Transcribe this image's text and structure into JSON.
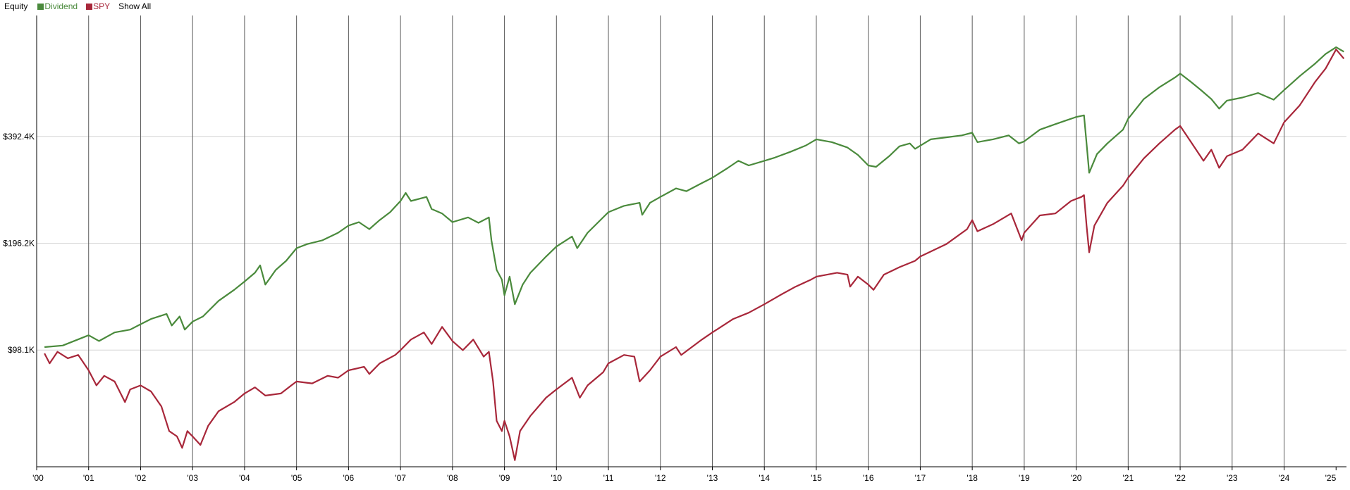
{
  "legend": {
    "title": "Equity",
    "items": [
      {
        "label": "Dividend",
        "color": "#4a8a3c"
      },
      {
        "label": "SPY",
        "color": "#a8273a"
      }
    ],
    "show_all": "Show All"
  },
  "chart_data": {
    "type": "line",
    "title": "Equity",
    "xlabel": "",
    "ylabel": "",
    "grid": true,
    "legend_position": "top-left",
    "x_ticks": [
      "'00",
      "'01",
      "'02",
      "'03",
      "'04",
      "'05",
      "'06",
      "'07",
      "'08",
      "'09",
      "'10",
      "'11",
      "'12",
      "'13",
      "'14",
      "'15",
      "'16",
      "'17",
      "'18",
      "'19",
      "'20",
      "'21",
      "'22",
      "'23",
      "'24",
      "'25"
    ],
    "y_ticks": [
      {
        "value": 98100,
        "label": "$98.1K"
      },
      {
        "value": 196200,
        "label": "$196.2K"
      },
      {
        "value": 392400,
        "label": "$392.4K"
      }
    ],
    "y_scale": "log",
    "xlim": [
      2000.0,
      2025.2
    ],
    "ylim": [
      46000,
      860000
    ],
    "series": [
      {
        "name": "Dividend",
        "color": "#4a8a3c",
        "points": [
          [
            2000.15,
            100000
          ],
          [
            2000.5,
            101000
          ],
          [
            2001.0,
            108000
          ],
          [
            2001.2,
            104000
          ],
          [
            2001.5,
            110000
          ],
          [
            2001.8,
            112000
          ],
          [
            2002.0,
            116000
          ],
          [
            2002.2,
            120000
          ],
          [
            2002.5,
            124000
          ],
          [
            2002.6,
            115000
          ],
          [
            2002.75,
            122000
          ],
          [
            2002.85,
            112000
          ],
          [
            2003.0,
            118000
          ],
          [
            2003.2,
            122000
          ],
          [
            2003.5,
            135000
          ],
          [
            2003.8,
            145000
          ],
          [
            2004.0,
            153000
          ],
          [
            2004.2,
            162000
          ],
          [
            2004.3,
            170000
          ],
          [
            2004.4,
            150000
          ],
          [
            2004.6,
            165000
          ],
          [
            2004.8,
            175000
          ],
          [
            2005.0,
            190000
          ],
          [
            2005.2,
            195000
          ],
          [
            2005.5,
            200000
          ],
          [
            2005.8,
            210000
          ],
          [
            2006.0,
            220000
          ],
          [
            2006.2,
            225000
          ],
          [
            2006.4,
            215000
          ],
          [
            2006.6,
            228000
          ],
          [
            2006.8,
            240000
          ],
          [
            2007.0,
            258000
          ],
          [
            2007.1,
            272000
          ],
          [
            2007.2,
            258000
          ],
          [
            2007.5,
            265000
          ],
          [
            2007.6,
            245000
          ],
          [
            2007.8,
            238000
          ],
          [
            2008.0,
            225000
          ],
          [
            2008.3,
            232000
          ],
          [
            2008.5,
            224000
          ],
          [
            2008.7,
            232000
          ],
          [
            2008.75,
            200000
          ],
          [
            2008.85,
            165000
          ],
          [
            2008.95,
            155000
          ],
          [
            2009.0,
            140000
          ],
          [
            2009.1,
            158000
          ],
          [
            2009.2,
            132000
          ],
          [
            2009.35,
            150000
          ],
          [
            2009.5,
            162000
          ],
          [
            2009.8,
            180000
          ],
          [
            2010.0,
            192000
          ],
          [
            2010.3,
            205000
          ],
          [
            2010.4,
            190000
          ],
          [
            2010.6,
            210000
          ],
          [
            2011.0,
            240000
          ],
          [
            2011.3,
            250000
          ],
          [
            2011.6,
            255000
          ],
          [
            2011.65,
            236000
          ],
          [
            2011.8,
            255000
          ],
          [
            2012.0,
            265000
          ],
          [
            2012.3,
            280000
          ],
          [
            2012.5,
            275000
          ],
          [
            2012.8,
            290000
          ],
          [
            2013.0,
            300000
          ],
          [
            2013.3,
            320000
          ],
          [
            2013.5,
            335000
          ],
          [
            2013.7,
            325000
          ],
          [
            2014.0,
            335000
          ],
          [
            2014.2,
            342000
          ],
          [
            2014.5,
            355000
          ],
          [
            2014.8,
            370000
          ],
          [
            2015.0,
            385000
          ],
          [
            2015.3,
            378000
          ],
          [
            2015.6,
            365000
          ],
          [
            2015.8,
            348000
          ],
          [
            2016.0,
            325000
          ],
          [
            2016.15,
            322000
          ],
          [
            2016.4,
            345000
          ],
          [
            2016.6,
            368000
          ],
          [
            2016.8,
            375000
          ],
          [
            2016.9,
            362000
          ],
          [
            2017.2,
            385000
          ],
          [
            2017.5,
            390000
          ],
          [
            2017.8,
            395000
          ],
          [
            2018.0,
            402000
          ],
          [
            2018.1,
            378000
          ],
          [
            2018.4,
            385000
          ],
          [
            2018.7,
            395000
          ],
          [
            2018.9,
            375000
          ],
          [
            2019.0,
            380000
          ],
          [
            2019.3,
            410000
          ],
          [
            2019.6,
            425000
          ],
          [
            2019.8,
            435000
          ],
          [
            2020.0,
            445000
          ],
          [
            2020.15,
            450000
          ],
          [
            2020.2,
            375000
          ],
          [
            2020.25,
            310000
          ],
          [
            2020.4,
            350000
          ],
          [
            2020.6,
            375000
          ],
          [
            2020.9,
            410000
          ],
          [
            2021.0,
            440000
          ],
          [
            2021.3,
            500000
          ],
          [
            2021.6,
            540000
          ],
          [
            2021.9,
            575000
          ],
          [
            2022.0,
            590000
          ],
          [
            2022.2,
            560000
          ],
          [
            2022.4,
            530000
          ],
          [
            2022.6,
            500000
          ],
          [
            2022.75,
            470000
          ],
          [
            2022.9,
            495000
          ],
          [
            2023.2,
            505000
          ],
          [
            2023.5,
            520000
          ],
          [
            2023.8,
            498000
          ],
          [
            2024.0,
            530000
          ],
          [
            2024.3,
            580000
          ],
          [
            2024.6,
            630000
          ],
          [
            2024.8,
            670000
          ],
          [
            2025.0,
            700000
          ],
          [
            2025.15,
            680000
          ]
        ]
      },
      {
        "name": "SPY",
        "color": "#a8273a",
        "points": [
          [
            2000.15,
            96000
          ],
          [
            2000.25,
            90000
          ],
          [
            2000.4,
            97000
          ],
          [
            2000.6,
            93000
          ],
          [
            2000.8,
            95000
          ],
          [
            2001.0,
            86000
          ],
          [
            2001.15,
            78000
          ],
          [
            2001.3,
            83000
          ],
          [
            2001.5,
            80000
          ],
          [
            2001.7,
            70000
          ],
          [
            2001.8,
            76000
          ],
          [
            2002.0,
            78000
          ],
          [
            2002.2,
            75000
          ],
          [
            2002.4,
            68000
          ],
          [
            2002.55,
            58000
          ],
          [
            2002.7,
            56000
          ],
          [
            2002.8,
            52000
          ],
          [
            2002.9,
            58000
          ],
          [
            2003.0,
            56000
          ],
          [
            2003.15,
            53000
          ],
          [
            2003.3,
            60000
          ],
          [
            2003.5,
            66000
          ],
          [
            2003.8,
            70000
          ],
          [
            2004.0,
            74000
          ],
          [
            2004.2,
            77000
          ],
          [
            2004.4,
            73000
          ],
          [
            2004.7,
            74000
          ],
          [
            2004.9,
            78000
          ],
          [
            2005.0,
            80000
          ],
          [
            2005.3,
            79000
          ],
          [
            2005.6,
            83000
          ],
          [
            2005.8,
            82000
          ],
          [
            2006.0,
            86000
          ],
          [
            2006.3,
            88000
          ],
          [
            2006.4,
            84000
          ],
          [
            2006.6,
            90000
          ],
          [
            2006.9,
            95000
          ],
          [
            2007.0,
            98000
          ],
          [
            2007.2,
            105000
          ],
          [
            2007.45,
            110000
          ],
          [
            2007.6,
            102000
          ],
          [
            2007.8,
            114000
          ],
          [
            2008.0,
            104000
          ],
          [
            2008.2,
            98000
          ],
          [
            2008.4,
            105000
          ],
          [
            2008.6,
            94000
          ],
          [
            2008.7,
            97000
          ],
          [
            2008.78,
            80000
          ],
          [
            2008.85,
            62000
          ],
          [
            2008.95,
            58000
          ],
          [
            2009.0,
            62000
          ],
          [
            2009.1,
            56000
          ],
          [
            2009.2,
            48000
          ],
          [
            2009.3,
            58000
          ],
          [
            2009.5,
            64000
          ],
          [
            2009.8,
            72000
          ],
          [
            2010.0,
            76000
          ],
          [
            2010.3,
            82000
          ],
          [
            2010.45,
            72000
          ],
          [
            2010.6,
            78000
          ],
          [
            2010.9,
            85000
          ],
          [
            2011.0,
            90000
          ],
          [
            2011.3,
            95000
          ],
          [
            2011.5,
            94000
          ],
          [
            2011.6,
            80000
          ],
          [
            2011.8,
            86000
          ],
          [
            2012.0,
            94000
          ],
          [
            2012.3,
            100000
          ],
          [
            2012.4,
            95000
          ],
          [
            2012.8,
            105000
          ],
          [
            2013.0,
            110000
          ],
          [
            2013.4,
            120000
          ],
          [
            2013.7,
            125000
          ],
          [
            2014.0,
            132000
          ],
          [
            2014.3,
            140000
          ],
          [
            2014.6,
            148000
          ],
          [
            2014.9,
            155000
          ],
          [
            2015.0,
            158000
          ],
          [
            2015.4,
            162000
          ],
          [
            2015.6,
            160000
          ],
          [
            2015.65,
            148000
          ],
          [
            2015.8,
            158000
          ],
          [
            2016.0,
            150000
          ],
          [
            2016.1,
            145000
          ],
          [
            2016.3,
            160000
          ],
          [
            2016.6,
            168000
          ],
          [
            2016.9,
            175000
          ],
          [
            2017.0,
            180000
          ],
          [
            2017.5,
            195000
          ],
          [
            2017.9,
            215000
          ],
          [
            2018.0,
            228000
          ],
          [
            2018.1,
            212000
          ],
          [
            2018.4,
            222000
          ],
          [
            2018.75,
            238000
          ],
          [
            2018.95,
            200000
          ],
          [
            2019.0,
            210000
          ],
          [
            2019.3,
            235000
          ],
          [
            2019.6,
            238000
          ],
          [
            2019.9,
            258000
          ],
          [
            2020.1,
            265000
          ],
          [
            2020.15,
            268000
          ],
          [
            2020.2,
            220000
          ],
          [
            2020.25,
            185000
          ],
          [
            2020.35,
            220000
          ],
          [
            2020.6,
            255000
          ],
          [
            2020.9,
            285000
          ],
          [
            2021.0,
            300000
          ],
          [
            2021.3,
            340000
          ],
          [
            2021.6,
            375000
          ],
          [
            2021.9,
            410000
          ],
          [
            2022.0,
            420000
          ],
          [
            2022.2,
            380000
          ],
          [
            2022.45,
            335000
          ],
          [
            2022.6,
            360000
          ],
          [
            2022.75,
            320000
          ],
          [
            2022.9,
            345000
          ],
          [
            2023.2,
            360000
          ],
          [
            2023.5,
            400000
          ],
          [
            2023.8,
            375000
          ],
          [
            2024.0,
            430000
          ],
          [
            2024.3,
            480000
          ],
          [
            2024.6,
            560000
          ],
          [
            2024.8,
            610000
          ],
          [
            2025.0,
            690000
          ],
          [
            2025.15,
            650000
          ]
        ]
      }
    ]
  }
}
